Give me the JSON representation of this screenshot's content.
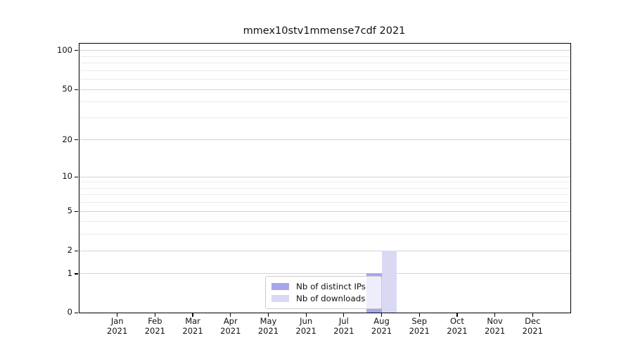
{
  "title": "mmex10stv1mmense7cdf 2021",
  "chart_data": {
    "type": "bar",
    "title": "mmex10stv1mmense7cdf 2021",
    "categories": [
      "Jan",
      "Feb",
      "Mar",
      "Apr",
      "May",
      "Jun",
      "Jul",
      "Aug",
      "Sep",
      "Oct",
      "Nov",
      "Dec"
    ],
    "x_year_label": "2021",
    "series": [
      {
        "name": "Nb of distinct IPs",
        "color": "#a6a6ef",
        "values": [
          0,
          0,
          0,
          0,
          0,
          0,
          0,
          1,
          0,
          0,
          0,
          0
        ]
      },
      {
        "name": "Nb of downloads",
        "color": "#d9d9f6",
        "values": [
          0,
          0,
          0,
          0,
          0,
          0,
          0,
          2,
          0,
          0,
          0,
          0
        ]
      }
    ],
    "xlabel": "",
    "ylabel": "",
    "y_axis": {
      "scale": "log10(value+1)",
      "major_ticks": [
        0,
        1,
        2,
        5,
        10,
        20,
        50,
        100
      ],
      "minor_gridlines": [
        3,
        4,
        6,
        7,
        8,
        9,
        30,
        40,
        60,
        70,
        80,
        90
      ],
      "ylim": [
        0,
        113
      ]
    },
    "grid": "horizontal",
    "legend_position": "lower center-right inside plot",
    "colors": {
      "major_grid": "#d3d3d3",
      "minor_grid": "#ebebeb",
      "axis": "#000000",
      "background": "#ffffff"
    }
  },
  "legend": {
    "items": [
      {
        "label": "Nb of distinct IPs",
        "color": "#a6a6ef"
      },
      {
        "label": "Nb of downloads",
        "color": "#d9d9f6"
      }
    ]
  }
}
